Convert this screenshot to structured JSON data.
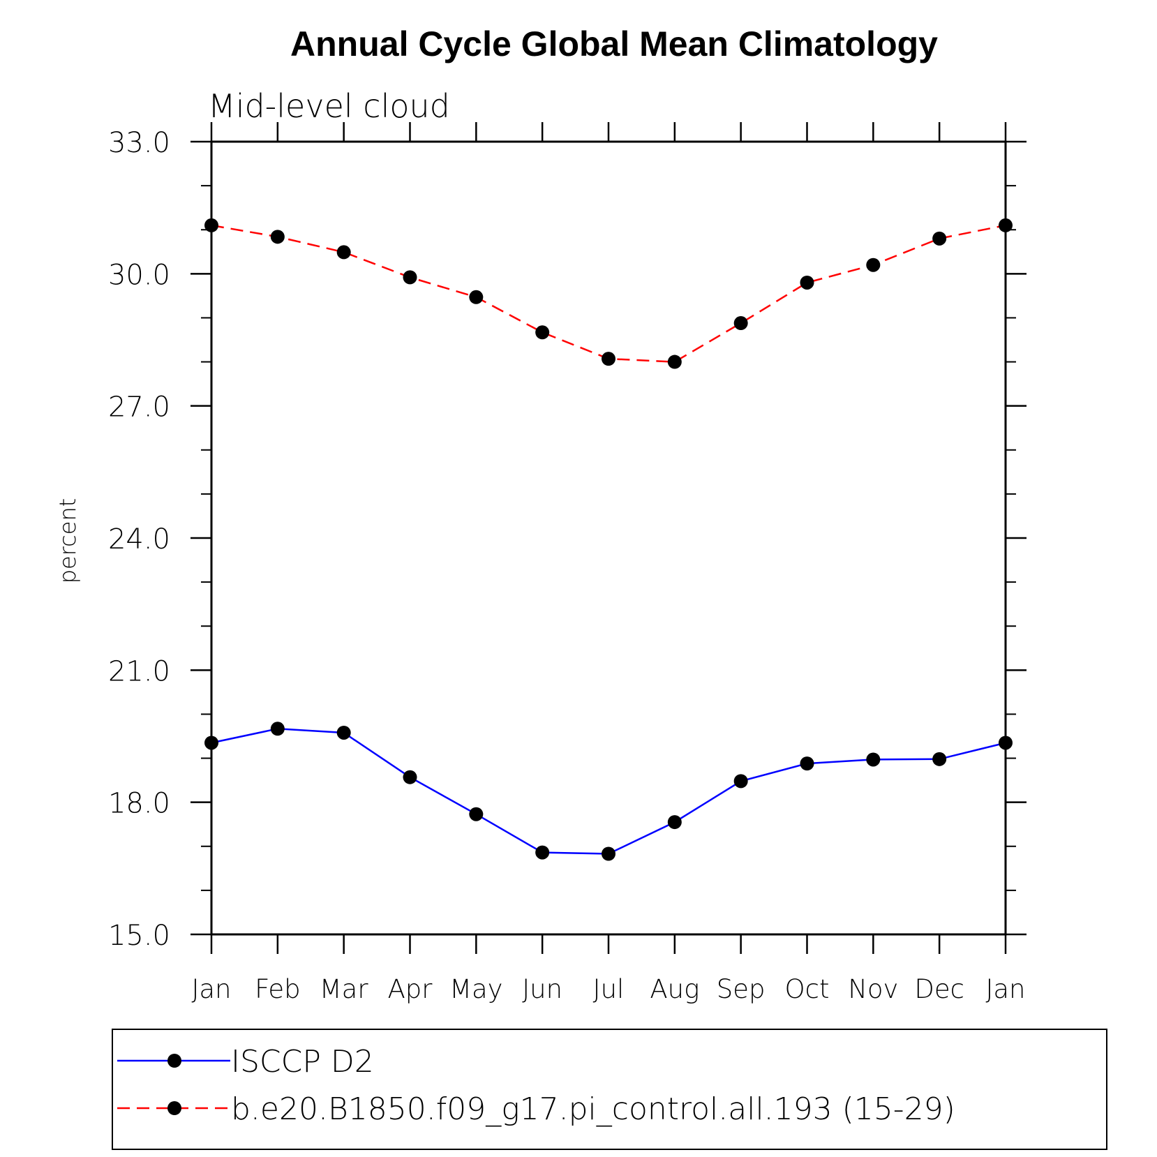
{
  "chart_data": {
    "type": "line",
    "title": "Annual Cycle Global Mean Climatology",
    "subtitle": "Mid-level cloud",
    "ylabel": "percent",
    "xlabel": "",
    "categories": [
      "Jan",
      "Feb",
      "Mar",
      "Apr",
      "May",
      "Jun",
      "Jul",
      "Aug",
      "Sep",
      "Oct",
      "Nov",
      "Dec",
      "Jan"
    ],
    "ylim": [
      15.0,
      33.0
    ],
    "yticks": [
      "15.0",
      "18.0",
      "21.0",
      "24.0",
      "27.0",
      "30.0",
      "33.0"
    ],
    "ytick_values": [
      15,
      18,
      21,
      24,
      27,
      30,
      33
    ],
    "grid": false,
    "legend_position": "bottom",
    "series": [
      {
        "name": "ISCCP D2",
        "color": "#0000ff",
        "line_style": "solid",
        "marker": "filled-circle",
        "values": [
          19.35,
          19.67,
          19.58,
          18.57,
          17.73,
          16.86,
          16.83,
          17.55,
          18.48,
          18.88,
          18.97,
          18.98,
          19.35
        ]
      },
      {
        "name": "b.e20.B1850.f09_g17.pi_control.all.193 (15-29)",
        "color": "#ff0000",
        "line_style": "dashed",
        "marker": "filled-circle",
        "values": [
          31.1,
          30.84,
          30.49,
          29.92,
          29.47,
          28.67,
          28.07,
          28.0,
          28.88,
          29.8,
          30.2,
          30.8,
          31.1
        ]
      }
    ]
  }
}
